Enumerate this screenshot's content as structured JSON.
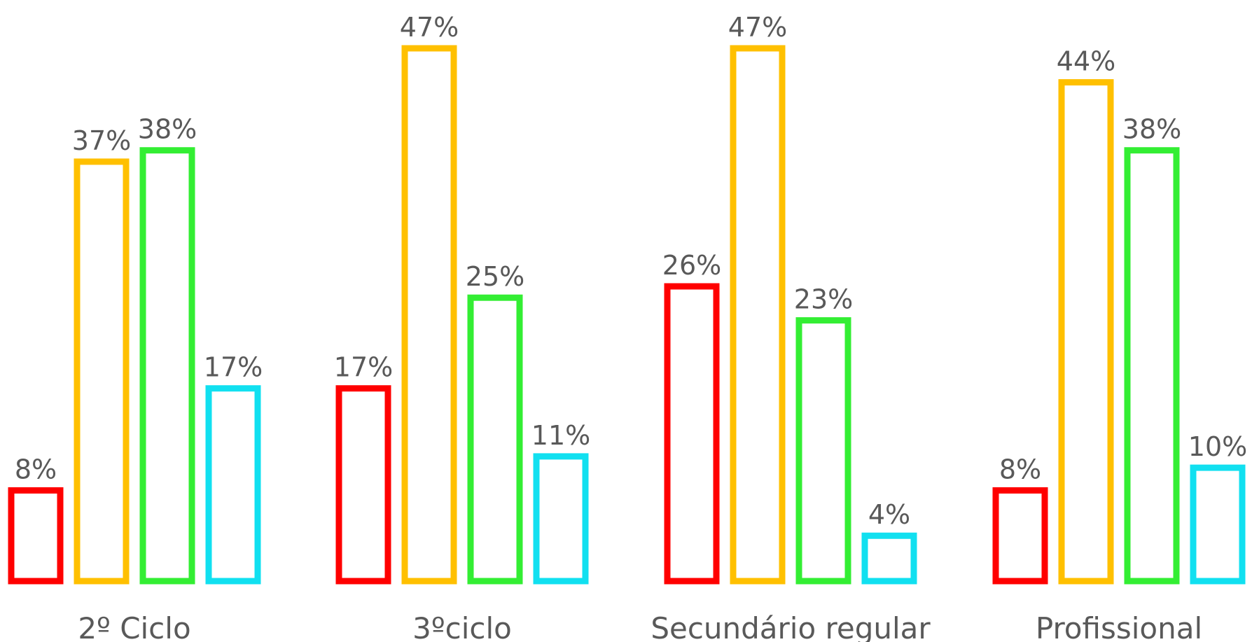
{
  "chart_data": {
    "type": "bar",
    "title": "",
    "xlabel": "",
    "ylabel": "",
    "categories": [
      "2º Ciclo",
      "3ºciclo",
      "Secundário regular",
      "Profissional"
    ],
    "series": [
      {
        "values": [
          8,
          17,
          26,
          8
        ],
        "labels": [
          "8%",
          "17%",
          "26%",
          "8%"
        ],
        "color": "#FF0000"
      },
      {
        "values": [
          37,
          47,
          47,
          44
        ],
        "labels": [
          "37%",
          "47%",
          "47%",
          "44%"
        ],
        "color": "#FFC000"
      },
      {
        "values": [
          38,
          25,
          23,
          38
        ],
        "labels": [
          "38%",
          "25%",
          "23%",
          "38%"
        ],
        "color": "#33EE33"
      },
      {
        "values": [
          17,
          11,
          4,
          10
        ],
        "labels": [
          "17%",
          "11%",
          "4%",
          "10%"
        ],
        "color": "#11E0F0"
      }
    ],
    "ylim": [
      0,
      47
    ],
    "grid": false,
    "legend": "none",
    "bar_style": "outline"
  }
}
